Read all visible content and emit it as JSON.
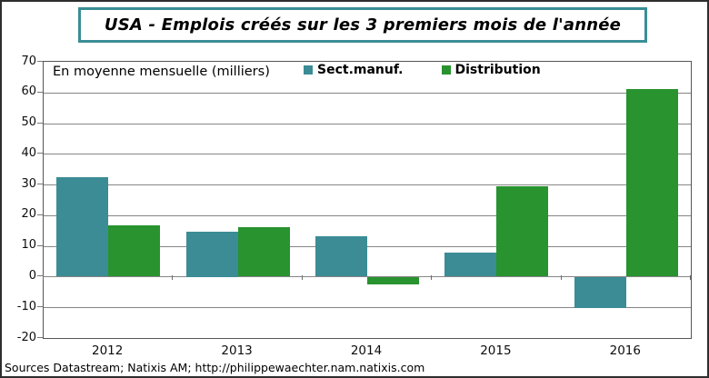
{
  "header": {
    "title": "USA - Emplois créés sur les 3 premiers mois de l'année",
    "title_border_color": "#3a8e96"
  },
  "footer": {
    "source": "Sources Datastream; Natixis AM; http://philippewaechter.nam.natixis.com"
  },
  "chart_data": {
    "type": "bar",
    "title": "USA - Emplois créés sur les 3 premiers mois de l'année",
    "annotation": "En moyenne mensuelle (milliers)",
    "categories": [
      "2012",
      "2013",
      "2014",
      "2015",
      "2016"
    ],
    "series": [
      {
        "name": "Sect.manuf.",
        "color": "#3b8c95",
        "values": [
          32.4,
          14.8,
          13.3,
          7.9,
          -10
        ]
      },
      {
        "name": "Distribution",
        "color": "#28932f",
        "values": [
          16.6,
          16.1,
          -2.4,
          29.4,
          61
        ]
      }
    ],
    "xlabel": "",
    "ylabel": "",
    "ylim": [
      -20,
      70
    ],
    "ytick_step": 10,
    "grid": true,
    "gridline_color": "#868686",
    "legend_position": "top-inside"
  }
}
